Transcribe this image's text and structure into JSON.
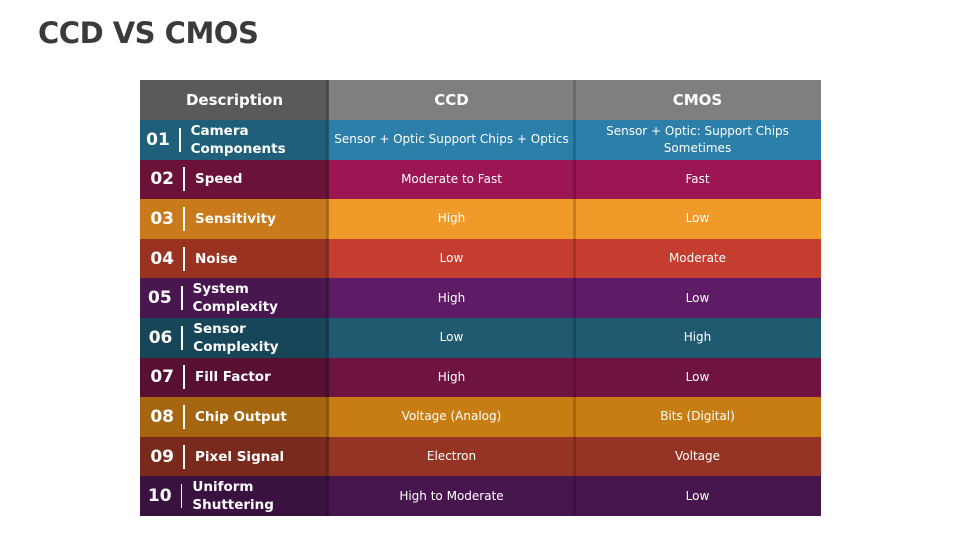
{
  "title": "CCD VS CMOS",
  "table": {
    "headers": {
      "description": "Description",
      "ccd": "CCD",
      "cmos": "CMOS"
    },
    "rows": [
      {
        "num": "01",
        "label": "Camera Components",
        "ccd": "Sensor + Optic Support Chips + Optics",
        "cmos": "Sensor + Optic: Support Chips Sometimes",
        "colors": {
          "desc": "#1f5f7a",
          "main": "#2c7fa8"
        }
      },
      {
        "num": "02",
        "label": "Speed",
        "ccd": "Moderate to Fast",
        "cmos": "Fast",
        "colors": {
          "desc": "#6b1238",
          "main": "#9b1653"
        }
      },
      {
        "num": "03",
        "label": "Sensitivity",
        "ccd": "High",
        "cmos": "Low",
        "colors": {
          "desc": "#c97a1a",
          "main": "#f09a2a"
        }
      },
      {
        "num": "04",
        "label": "Noise",
        "ccd": "Low",
        "cmos": "Moderate",
        "colors": {
          "desc": "#9a3222",
          "main": "#c43d2e"
        }
      },
      {
        "num": "05",
        "label": "System Complexity",
        "ccd": "High",
        "cmos": "Low",
        "colors": {
          "desc": "#4a1650",
          "main": "#5e1c66"
        }
      },
      {
        "num": "06",
        "label": "Sensor Complexity",
        "ccd": "Low",
        "cmos": "High",
        "colors": {
          "desc": "#174658",
          "main": "#1f5a70"
        }
      },
      {
        "num": "07",
        "label": "Fill Factor",
        "ccd": "High",
        "cmos": "Low",
        "colors": {
          "desc": "#581032",
          "main": "#6f1440"
        }
      },
      {
        "num": "08",
        "label": "Chip Output",
        "ccd": "Voltage (Analog)",
        "cmos": "Bits (Digital)",
        "colors": {
          "desc": "#a66610",
          "main": "#c77d12"
        }
      },
      {
        "num": "09",
        "label": "Pixel Signal",
        "ccd": "Electron",
        "cmos": "Voltage",
        "colors": {
          "desc": "#7a2a1c",
          "main": "#953324"
        }
      },
      {
        "num": "10",
        "label": "Uniform Shuttering",
        "ccd": "High to Moderate",
        "cmos": "Low",
        "colors": {
          "desc": "#3a1240",
          "main": "#47164e"
        }
      }
    ]
  }
}
